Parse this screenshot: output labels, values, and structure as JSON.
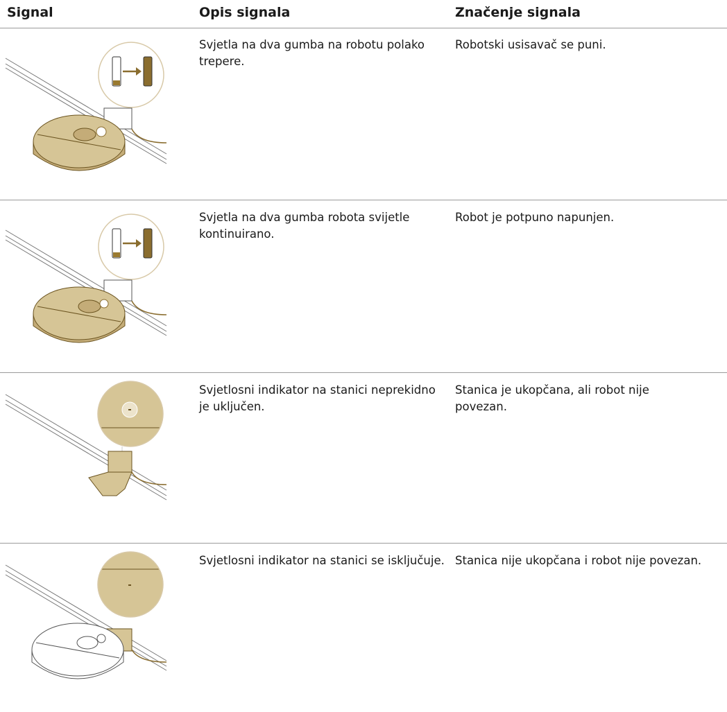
{
  "table": {
    "headers": [
      "Signal",
      "Opis signala",
      "Značenje signala"
    ],
    "rows": [
      [
        "Svjetla na dva gumba na robotu polako trepere.",
        "Robotski usisavač se puni."
      ],
      [
        "Svjetla na dva gumba robota svijetle kontinuirano.",
        "Robot je potpuno napunjen."
      ],
      [
        "Svjetlosni indikator na stanici neprekidno je uključen.",
        "Stanica je ukopčana, ali robot nije povezan."
      ],
      [
        "Svjetlosni indikator na stanici se isključuje.",
        "Stanica nije ukopčana i robot nije povezan."
      ]
    ]
  }
}
